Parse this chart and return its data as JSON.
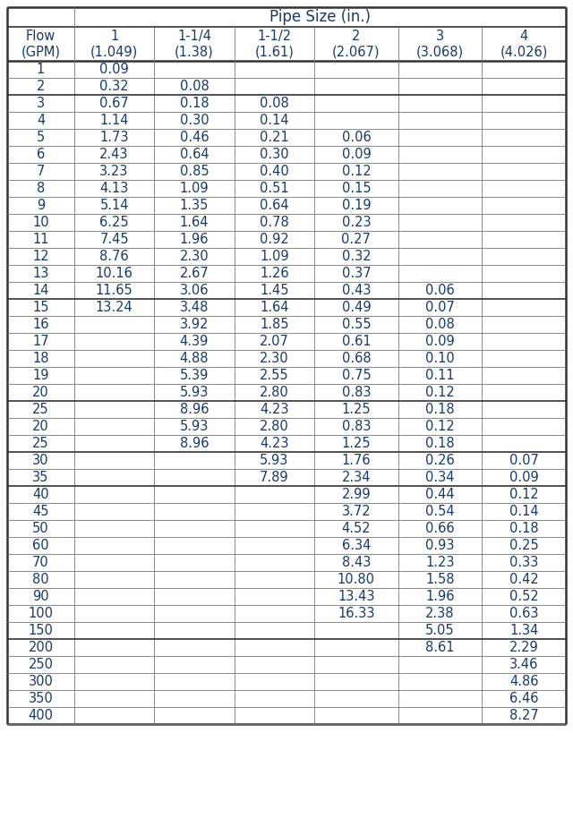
{
  "title": "Pipe Size (in.)",
  "col_headers": [
    "Flow\n(GPM)",
    "1\n(1.049)",
    "1-1/4\n(1.38)",
    "1-1/2\n(1.61)",
    "2\n(2.067)",
    "3\n(3.068)",
    "4\n(4.026)"
  ],
  "rows": [
    [
      "1",
      "0.09",
      "",
      "",
      "",
      "",
      ""
    ],
    [
      "2",
      "0.32",
      "0.08",
      "",
      "",
      "",
      ""
    ],
    [
      "3",
      "0.67",
      "0.18",
      "0.08",
      "",
      "",
      ""
    ],
    [
      "4",
      "1.14",
      "0.30",
      "0.14",
      "",
      "",
      ""
    ],
    [
      "5",
      "1.73",
      "0.46",
      "0.21",
      "0.06",
      "",
      ""
    ],
    [
      "6",
      "2.43",
      "0.64",
      "0.30",
      "0.09",
      "",
      ""
    ],
    [
      "7",
      "3.23",
      "0.85",
      "0.40",
      "0.12",
      "",
      ""
    ],
    [
      "8",
      "4.13",
      "1.09",
      "0.51",
      "0.15",
      "",
      ""
    ],
    [
      "9",
      "5.14",
      "1.35",
      "0.64",
      "0.19",
      "",
      ""
    ],
    [
      "10",
      "6.25",
      "1.64",
      "0.78",
      "0.23",
      "",
      ""
    ],
    [
      "11",
      "7.45",
      "1.96",
      "0.92",
      "0.27",
      "",
      ""
    ],
    [
      "12",
      "8.76",
      "2.30",
      "1.09",
      "0.32",
      "",
      ""
    ],
    [
      "13",
      "10.16",
      "2.67",
      "1.26",
      "0.37",
      "",
      ""
    ],
    [
      "14",
      "11.65",
      "3.06",
      "1.45",
      "0.43",
      "0.06",
      ""
    ],
    [
      "15",
      "13.24",
      "3.48",
      "1.64",
      "0.49",
      "0.07",
      ""
    ],
    [
      "16",
      "",
      "3.92",
      "1.85",
      "0.55",
      "0.08",
      ""
    ],
    [
      "17",
      "",
      "4.39",
      "2.07",
      "0.61",
      "0.09",
      ""
    ],
    [
      "18",
      "",
      "4.88",
      "2.30",
      "0.68",
      "0.10",
      ""
    ],
    [
      "19",
      "",
      "5.39",
      "2.55",
      "0.75",
      "0.11",
      ""
    ],
    [
      "20",
      "",
      "5.93",
      "2.80",
      "0.83",
      "0.12",
      ""
    ],
    [
      "25",
      "",
      "8.96",
      "4.23",
      "1.25",
      "0.18",
      ""
    ],
    [
      "20",
      "",
      "5.93",
      "2.80",
      "0.83",
      "0.12",
      ""
    ],
    [
      "25",
      "",
      "8.96",
      "4.23",
      "1.25",
      "0.18",
      ""
    ],
    [
      "30",
      "",
      "",
      "5.93",
      "1.76",
      "0.26",
      "0.07"
    ],
    [
      "35",
      "",
      "",
      "7.89",
      "2.34",
      "0.34",
      "0.09"
    ],
    [
      "40",
      "",
      "",
      "",
      "2.99",
      "0.44",
      "0.12"
    ],
    [
      "45",
      "",
      "",
      "",
      "3.72",
      "0.54",
      "0.14"
    ],
    [
      "50",
      "",
      "",
      "",
      "4.52",
      "0.66",
      "0.18"
    ],
    [
      "60",
      "",
      "",
      "",
      "6.34",
      "0.93",
      "0.25"
    ],
    [
      "70",
      "",
      "",
      "",
      "8.43",
      "1.23",
      "0.33"
    ],
    [
      "80",
      "",
      "",
      "",
      "10.80",
      "1.58",
      "0.42"
    ],
    [
      "90",
      "",
      "",
      "",
      "13.43",
      "1.96",
      "0.52"
    ],
    [
      "100",
      "",
      "",
      "",
      "16.33",
      "2.38",
      "0.63"
    ],
    [
      "150",
      "",
      "",
      "",
      "",
      "5.05",
      "1.34"
    ],
    [
      "200",
      "",
      "",
      "",
      "",
      "8.61",
      "2.29"
    ],
    [
      "250",
      "",
      "",
      "",
      "",
      "",
      "3.46"
    ],
    [
      "300",
      "",
      "",
      "",
      "",
      "",
      "4.86"
    ],
    [
      "350",
      "",
      "",
      "",
      "",
      "",
      "6.46"
    ],
    [
      "400",
      "",
      "",
      "",
      "",
      "",
      "8.27"
    ]
  ],
  "thick_after_rows": [
    1,
    13,
    19,
    22,
    24,
    33
  ],
  "text_color": "#1a3a6b",
  "border_color": "#777777",
  "thick_border_color": "#333333",
  "bg_color": "#ffffff",
  "font_size": 10.5,
  "header_font_size": 10.5,
  "title_font_size": 12
}
